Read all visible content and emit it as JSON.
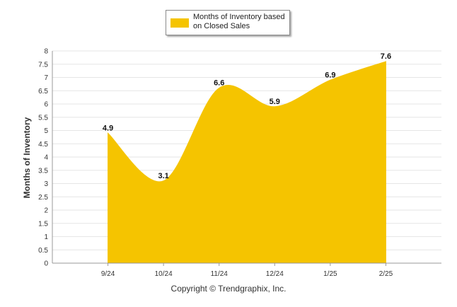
{
  "chart_data": {
    "type": "area",
    "categories": [
      "9/24",
      "10/24",
      "11/24",
      "12/24",
      "1/25",
      "2/25"
    ],
    "series": [
      {
        "name": "Months of Inventory based on Closed Sales",
        "values": [
          4.9,
          3.1,
          6.6,
          5.9,
          6.9,
          7.6
        ]
      }
    ],
    "data_labels": [
      "4.9",
      "3.1",
      "6.6",
      "5.9",
      "6.9",
      "7.6"
    ],
    "ylabel": "Months of Inventory",
    "xlabel": "",
    "ylim": [
      0,
      8
    ],
    "yticks": [
      "0",
      "0.5",
      "1",
      "1.5",
      "2",
      "2.5",
      "3",
      "3.5",
      "4",
      "4.5",
      "5",
      "5.5",
      "6",
      "6.5",
      "7",
      "7.5",
      "8"
    ],
    "grid": true,
    "legend_position": "top-center",
    "colors": {
      "fill": "#F5C400",
      "grid": "#e6e6e6",
      "axis": "#999999"
    }
  },
  "legend": {
    "label": "Months of Inventory based on Closed Sales"
  },
  "footer": {
    "text": "Copyright © Trendgraphix, Inc."
  }
}
